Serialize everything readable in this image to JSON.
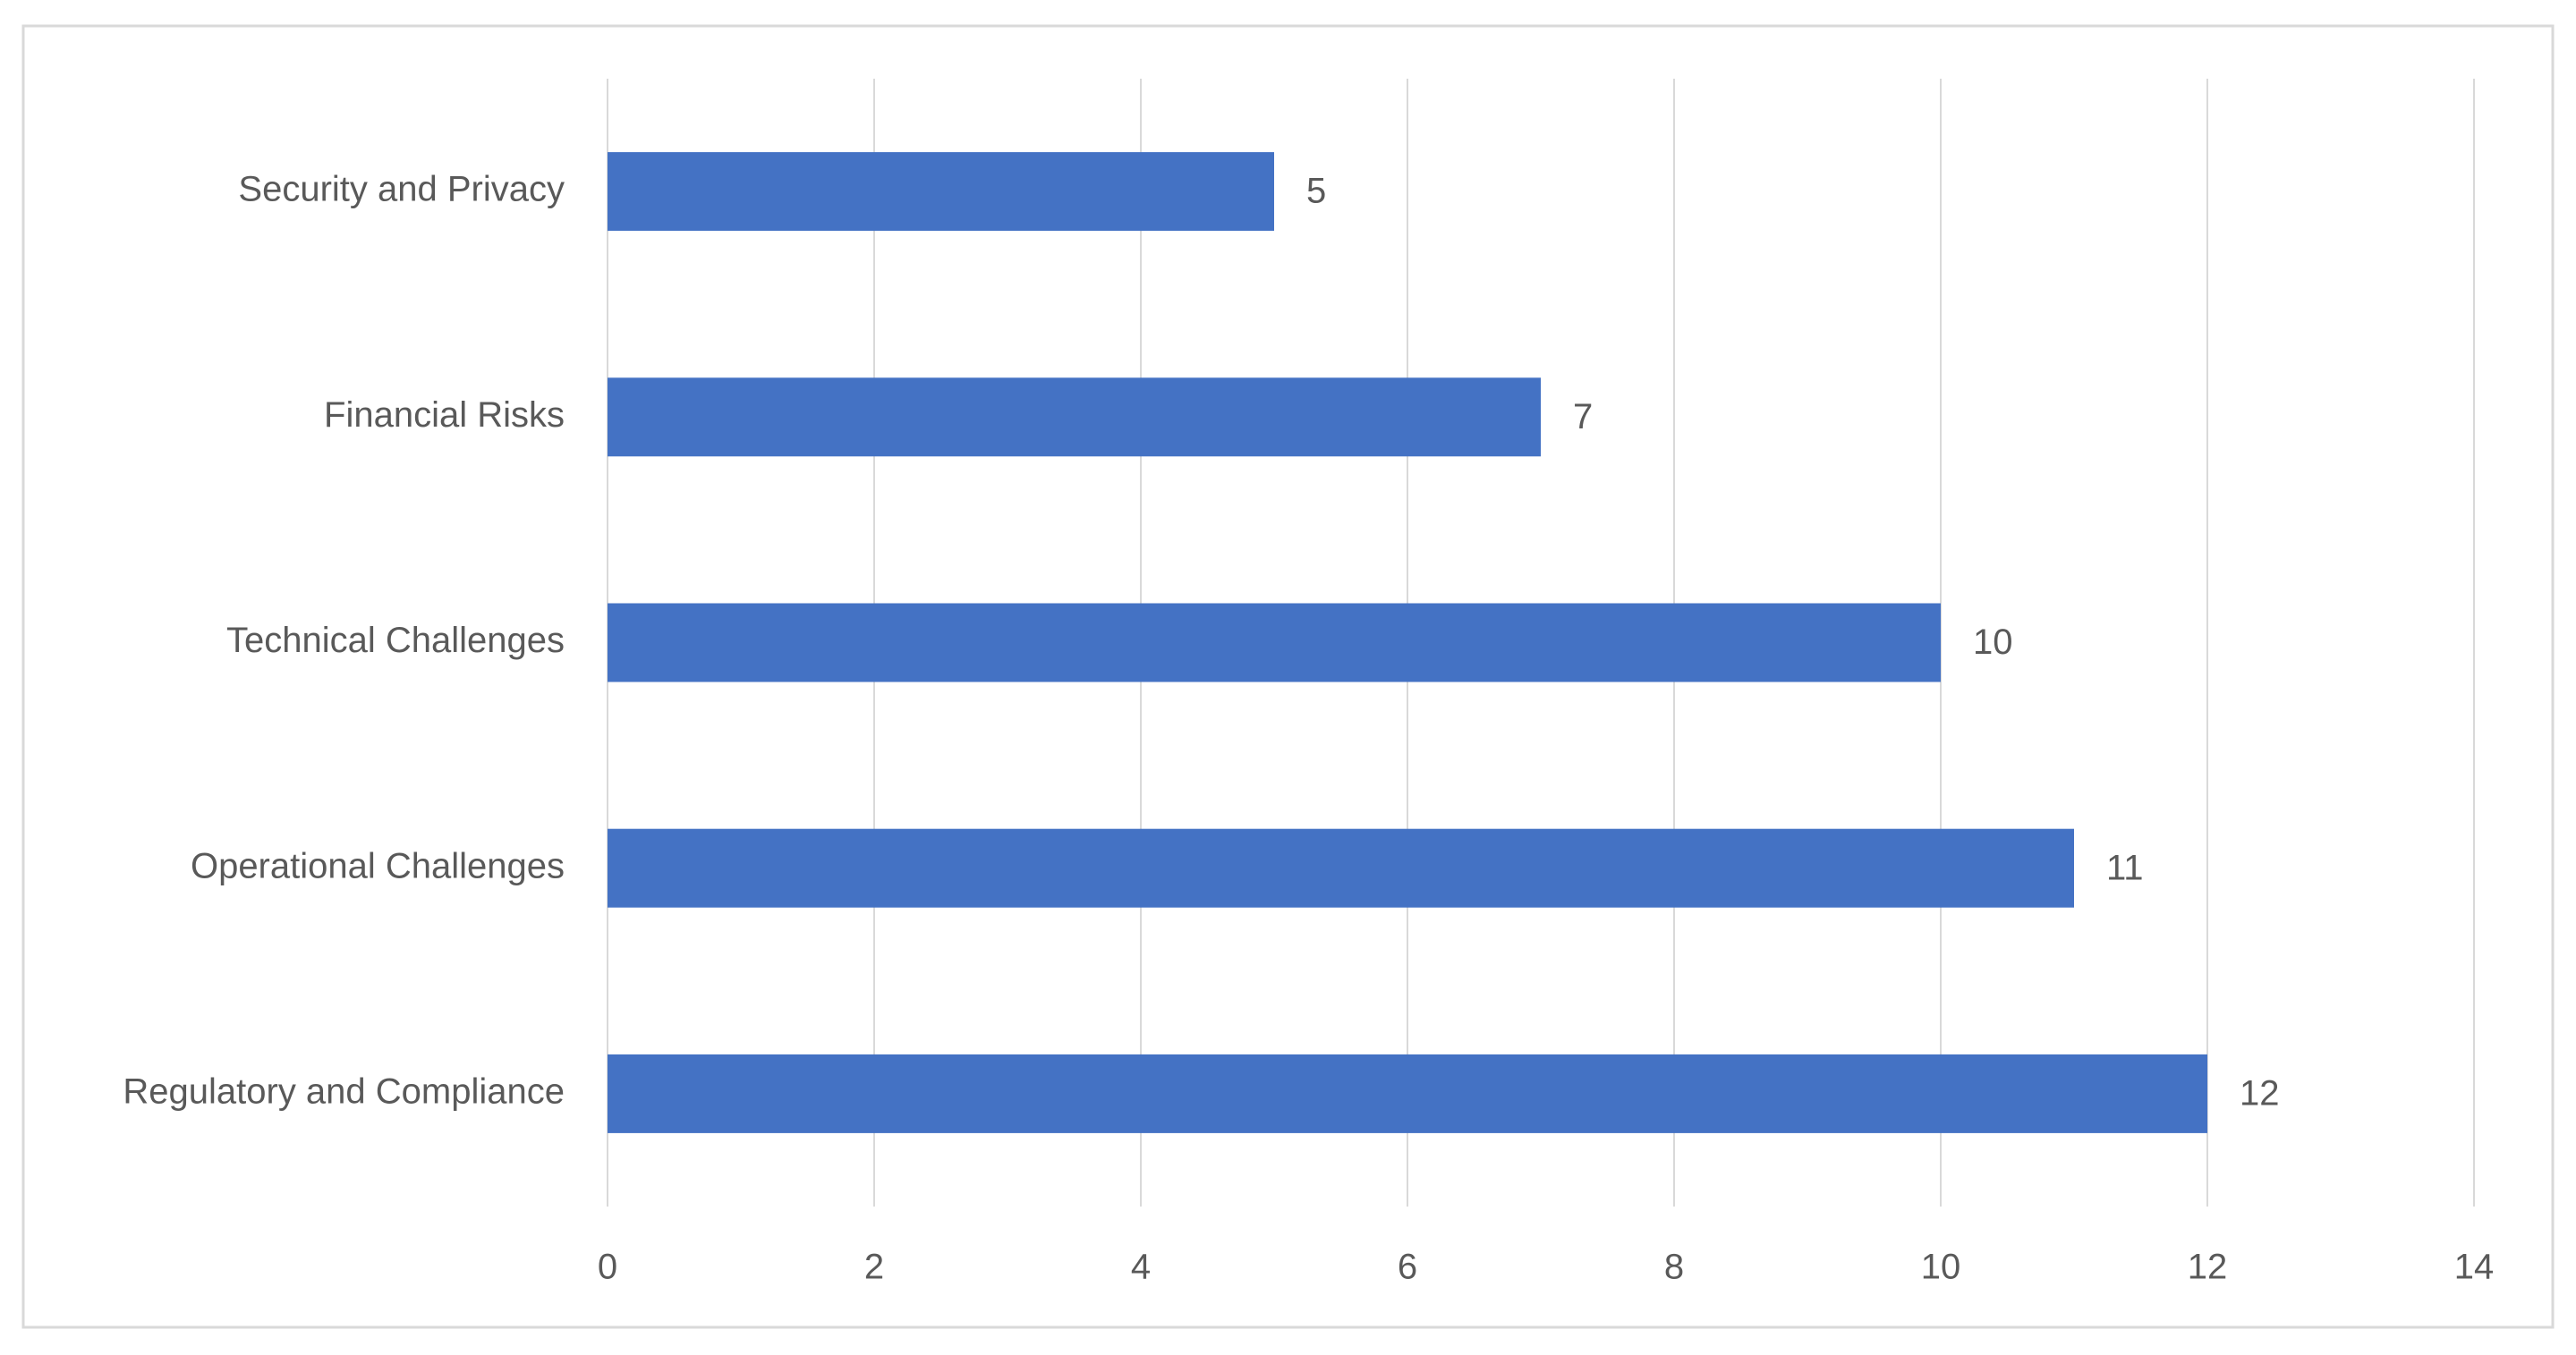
{
  "chart_data": {
    "type": "barh",
    "categories": [
      "Security and Privacy",
      "Financial Risks",
      "Technical Challenges",
      "Operational Challenges",
      "Regulatory and Compliance"
    ],
    "values": [
      5,
      7,
      10,
      11,
      12
    ],
    "color": "#4472c4",
    "xlim": [
      0,
      14
    ],
    "xticks": [
      0,
      2,
      4,
      6,
      8,
      10,
      12,
      14
    ],
    "grid": true
  }
}
